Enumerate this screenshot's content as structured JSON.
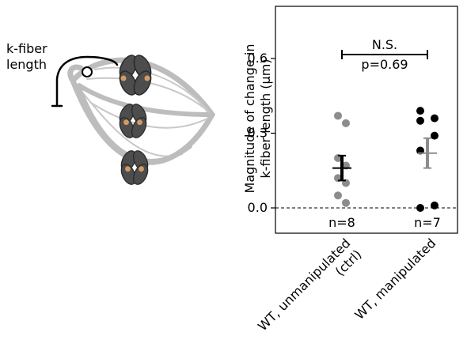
{
  "diagram": {
    "label": "k-fiber\nlength"
  },
  "chart_data": {
    "type": "strip",
    "ylabel": "Magnitude of change in\nk-fiber length (µm)",
    "categories": [
      "WT, unmanipulated\n(ctrl)",
      "WT, manipulated"
    ],
    "series": [
      {
        "color": "#8c8c8c",
        "mean_color": "#000000",
        "values": [
          0.37,
          0.34,
          0.2,
          0.17,
          0.12,
          0.1,
          0.05,
          0.02
        ],
        "mean": 0.16,
        "sem": 0.05
      },
      {
        "color": "#000000",
        "mean_color": "#8c8c8c",
        "values": [
          0.39,
          0.36,
          0.35,
          0.29,
          0.23,
          0.01,
          0.0
        ],
        "mean": 0.22,
        "sem": 0.06
      }
    ],
    "n_labels": [
      "n=8",
      "n=7"
    ],
    "annotation": "N.S.",
    "p_label": "p=0.69",
    "ylim": [
      -0.1,
      0.8
    ],
    "yticks": [
      {
        "value": 0,
        "label": "0.0"
      },
      0.3,
      0.6
    ],
    "reference_line": 0
  }
}
